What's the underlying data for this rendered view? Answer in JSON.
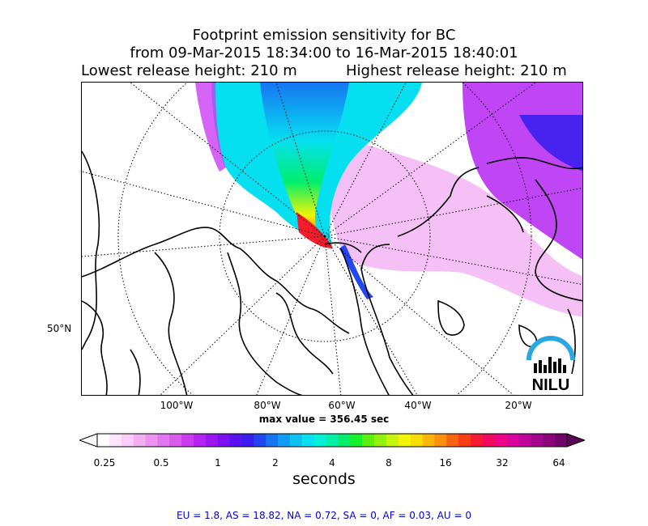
{
  "title": {
    "line1": "Footprint emission sensitivity for BC",
    "line2": "from 09-Mar-2015 18:34:00 to 16-Mar-2015 18:40:01",
    "lowest": "Lowest release height: 210 m",
    "highest": "Highest release height: 210 m"
  },
  "map": {
    "x_ticks": [
      "100°W",
      "80°W",
      "60°W",
      "40°W",
      "20°W"
    ],
    "y_ticks": [
      "50°N"
    ],
    "max_value": "max value = 356.45 sec",
    "logo_text": "NILU"
  },
  "colorbar": {
    "ticks": [
      "0.25",
      "0.5",
      "1",
      "2",
      "4",
      "8",
      "16",
      "32",
      "64"
    ],
    "label": "seconds",
    "colors": [
      "#ffffff",
      "#fde6fd",
      "#f9ccf9",
      "#f2b0f2",
      "#eb93ef",
      "#e176ee",
      "#d85bee",
      "#cb3cf0",
      "#b524f3",
      "#9b17f2",
      "#7b10f2",
      "#5a13f0",
      "#3b1ff0",
      "#2247f1",
      "#1676f2",
      "#0f9ef3",
      "#0bc2f2",
      "#06dff0",
      "#00f0d8",
      "#00f0a6",
      "#00ee6c",
      "#17ef2e",
      "#59f010",
      "#93f20c",
      "#c6f40a",
      "#f1f504",
      "#f8dc06",
      "#fbb608",
      "#fc8f0b",
      "#fb640f",
      "#f93d14",
      "#f61c2e",
      "#f20b5c",
      "#ed0488",
      "#d9049b",
      "#bf049c",
      "#a5058e",
      "#8a057b",
      "#6f0568"
    ]
  },
  "footer": "EU = 1.8,  AS = 18.82,  NA = 0.72,  SA = 0,  AF = 0.03,  AU = 0"
}
